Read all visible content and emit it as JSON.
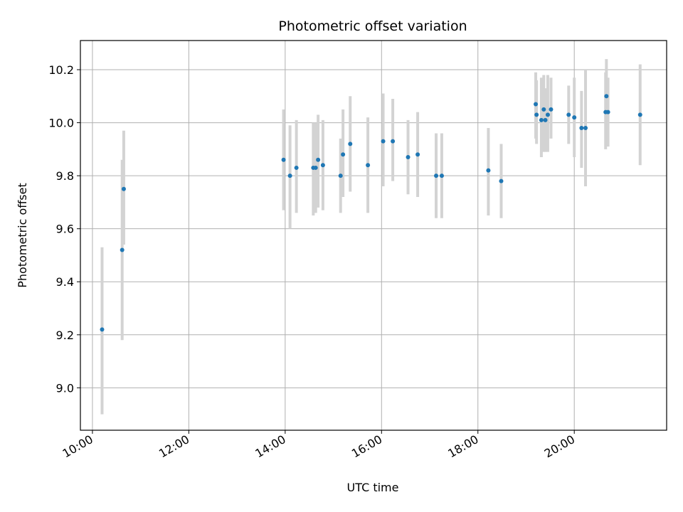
{
  "chart_data": {
    "type": "scatter",
    "title": "Photometric offset variation",
    "xlabel": "UTC time",
    "ylabel": "Photometric offset",
    "xlim": [
      "09:45",
      "21:55"
    ],
    "ylim": [
      8.84,
      10.31
    ],
    "xticks": [
      "10:00",
      "12:00",
      "14:00",
      "16:00",
      "18:00",
      "20:00"
    ],
    "yticks": [
      "9.0",
      "9.2",
      "9.4",
      "9.6",
      "9.8",
      "10.0",
      "10.2"
    ],
    "grid": true,
    "colors": {
      "point": "#1f77b4",
      "errorbar": "#d3d3d3",
      "grid": "#b0b0b0"
    },
    "points": [
      {
        "x": "10:12",
        "y": 9.22,
        "yerr_low": 8.9,
        "yerr_high": 9.53
      },
      {
        "x": "10:37",
        "y": 9.52,
        "yerr_low": 9.18,
        "yerr_high": 9.86
      },
      {
        "x": "10:39",
        "y": 9.75,
        "yerr_low": 9.54,
        "yerr_high": 9.97
      },
      {
        "x": "13:58",
        "y": 9.86,
        "yerr_low": 9.67,
        "yerr_high": 10.05
      },
      {
        "x": "14:06",
        "y": 9.8,
        "yerr_low": 9.6,
        "yerr_high": 9.99
      },
      {
        "x": "14:14",
        "y": 9.83,
        "yerr_low": 9.66,
        "yerr_high": 10.01
      },
      {
        "x": "14:35",
        "y": 9.83,
        "yerr_low": 9.65,
        "yerr_high": 10.0
      },
      {
        "x": "14:38",
        "y": 9.83,
        "yerr_low": 9.66,
        "yerr_high": 10.0
      },
      {
        "x": "14:41",
        "y": 9.86,
        "yerr_low": 9.68,
        "yerr_high": 10.03
      },
      {
        "x": "14:47",
        "y": 9.84,
        "yerr_low": 9.67,
        "yerr_high": 10.01
      },
      {
        "x": "15:09",
        "y": 9.8,
        "yerr_low": 9.66,
        "yerr_high": 9.94
      },
      {
        "x": "15:12",
        "y": 9.88,
        "yerr_low": 9.72,
        "yerr_high": 10.05
      },
      {
        "x": "15:21",
        "y": 9.92,
        "yerr_low": 9.74,
        "yerr_high": 10.1
      },
      {
        "x": "15:43",
        "y": 9.84,
        "yerr_low": 9.66,
        "yerr_high": 10.02
      },
      {
        "x": "16:02",
        "y": 9.93,
        "yerr_low": 9.76,
        "yerr_high": 10.11
      },
      {
        "x": "16:14",
        "y": 9.93,
        "yerr_low": 9.78,
        "yerr_high": 10.09
      },
      {
        "x": "16:33",
        "y": 9.87,
        "yerr_low": 9.73,
        "yerr_high": 10.01
      },
      {
        "x": "16:45",
        "y": 9.88,
        "yerr_low": 9.72,
        "yerr_high": 10.04
      },
      {
        "x": "17:08",
        "y": 9.8,
        "yerr_low": 9.64,
        "yerr_high": 9.96
      },
      {
        "x": "17:15",
        "y": 9.8,
        "yerr_low": 9.64,
        "yerr_high": 9.96
      },
      {
        "x": "18:13",
        "y": 9.82,
        "yerr_low": 9.65,
        "yerr_high": 9.98
      },
      {
        "x": "18:29",
        "y": 9.78,
        "yerr_low": 9.64,
        "yerr_high": 9.92
      },
      {
        "x": "19:12",
        "y": 10.07,
        "yerr_low": 9.94,
        "yerr_high": 10.19
      },
      {
        "x": "19:13",
        "y": 10.03,
        "yerr_low": 9.92,
        "yerr_high": 10.16
      },
      {
        "x": "19:19",
        "y": 10.01,
        "yerr_low": 9.87,
        "yerr_high": 10.17
      },
      {
        "x": "19:22",
        "y": 10.05,
        "yerr_low": 9.89,
        "yerr_high": 10.18
      },
      {
        "x": "19:24",
        "y": 10.01,
        "yerr_low": 9.89,
        "yerr_high": 10.13
      },
      {
        "x": "19:27",
        "y": 10.03,
        "yerr_low": 9.89,
        "yerr_high": 10.18
      },
      {
        "x": "19:31",
        "y": 10.05,
        "yerr_low": 9.94,
        "yerr_high": 10.17
      },
      {
        "x": "19:53",
        "y": 10.03,
        "yerr_low": 9.92,
        "yerr_high": 10.14
      },
      {
        "x": "20:00",
        "y": 10.02,
        "yerr_low": 9.87,
        "yerr_high": 10.17
      },
      {
        "x": "20:09",
        "y": 9.98,
        "yerr_low": 9.83,
        "yerr_high": 10.12
      },
      {
        "x": "20:14",
        "y": 9.98,
        "yerr_low": 9.76,
        "yerr_high": 10.2
      },
      {
        "x": "20:39",
        "y": 10.04,
        "yerr_low": 9.9,
        "yerr_high": 10.19
      },
      {
        "x": "20:40",
        "y": 10.1,
        "yerr_low": 9.97,
        "yerr_high": 10.24
      },
      {
        "x": "20:42",
        "y": 10.04,
        "yerr_low": 9.91,
        "yerr_high": 10.17
      },
      {
        "x": "21:22",
        "y": 10.03,
        "yerr_low": 9.84,
        "yerr_high": 10.22
      }
    ]
  }
}
